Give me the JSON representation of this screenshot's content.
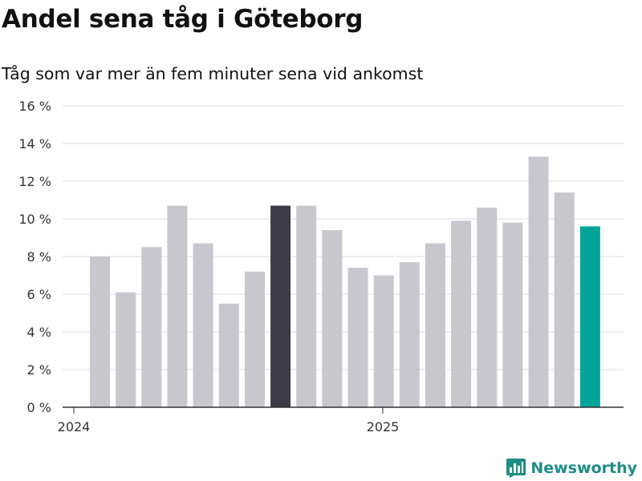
{
  "header": {
    "title": "Andel sena tåg i Göteborg",
    "subtitle": "Tåg som var mer än fem minuter sena vid ankomst"
  },
  "footer": {
    "brand": "Newsworthy"
  },
  "colors": {
    "default_bar": "#c8c7ce",
    "highlight_dark": "#3c3b47",
    "highlight_accent": "#00a599",
    "grid": "#dddddd",
    "axis": "#333333",
    "brand": "#1d8d86"
  },
  "chart_data": {
    "type": "bar",
    "title": "Andel sena tåg i Göteborg",
    "subtitle": "Tåg som var mer än fem minuter sena vid ankomst",
    "xlabel": "",
    "ylabel": "",
    "ylim": [
      0,
      16
    ],
    "yticks": [
      0,
      2,
      4,
      6,
      8,
      10,
      12,
      14,
      16
    ],
    "ytick_labels": [
      "0 %",
      "2 %",
      "4 %",
      "6 %",
      "8 %",
      "10 %",
      "12 %",
      "14 %",
      "16 %"
    ],
    "xtick_labels": [
      {
        "label": "2024",
        "index": 0
      },
      {
        "label": "2025",
        "index": 12
      }
    ],
    "grid": true,
    "categories": [
      "2024-01",
      "2024-02",
      "2024-03",
      "2024-04",
      "2024-05",
      "2024-06",
      "2024-07",
      "2024-08",
      "2024-09",
      "2024-10",
      "2024-11",
      "2024-12",
      "2025-01",
      "2025-02",
      "2025-03",
      "2025-04",
      "2025-05",
      "2025-06",
      "2025-07",
      "2025-08",
      "2025-09"
    ],
    "values": [
      8.0,
      6.1,
      8.5,
      10.7,
      8.7,
      5.5,
      7.2,
      10.7,
      10.7,
      9.4,
      7.4,
      7.0,
      7.7,
      8.7,
      9.9,
      10.6,
      9.8,
      13.3,
      11.4,
      9.6,
      null
    ],
    "highlights": [
      {
        "index": 7,
        "color": "#3c3b47"
      },
      {
        "index": 19,
        "color": "#00a599"
      }
    ]
  }
}
